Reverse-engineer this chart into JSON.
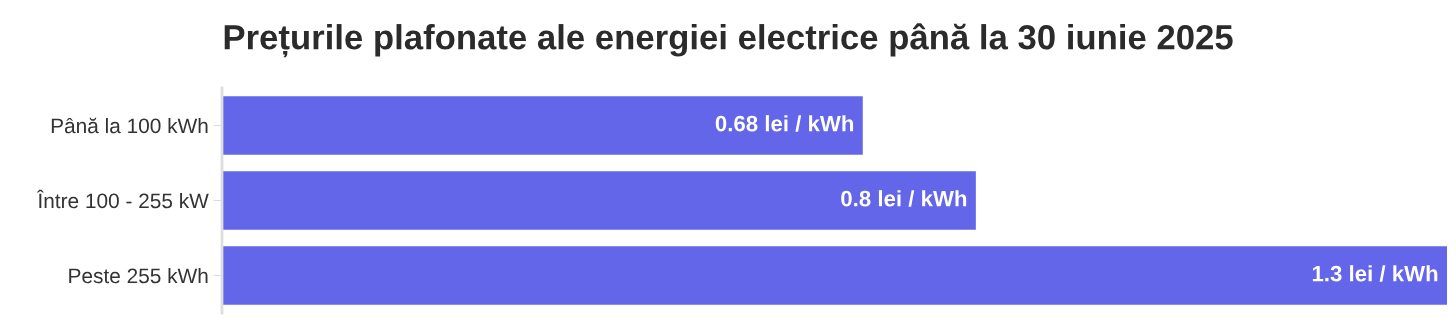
{
  "chart_data": {
    "type": "bar",
    "orientation": "horizontal",
    "title": "Prețurile plafonate ale energiei electrice până la 30 iunie 2025",
    "categories": [
      "Până la 100 kWh",
      "Între 100 - 255 kW",
      "Peste 255 kWh"
    ],
    "values": [
      0.68,
      0.8,
      1.3
    ],
    "color": "#6366e9",
    "value_labels": [
      "0.68 lei / kWh",
      "0.8 lei / kWh",
      "1.3 lei / kWh"
    ],
    "xlim": [
      0,
      1.3
    ],
    "tick_labels": "y",
    "grid": false,
    "legend": false
  }
}
